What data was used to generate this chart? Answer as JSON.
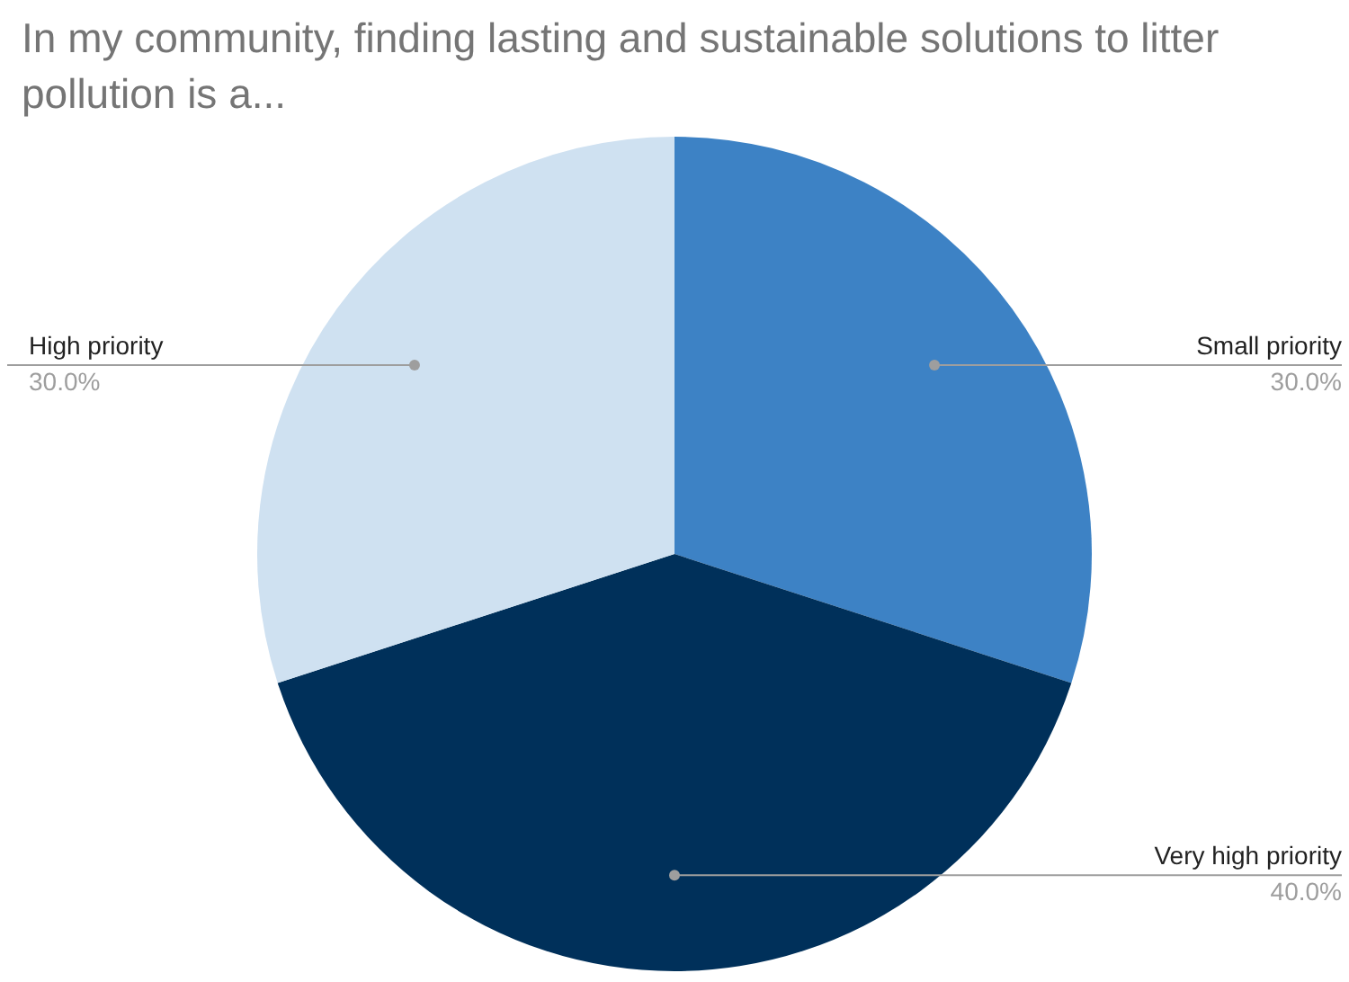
{
  "chart_data": {
    "type": "pie",
    "title": "In my community, finding lasting and sustainable solutions to litter pollution is a...",
    "categories": [
      "Small priority",
      "Very high priority",
      "High priority"
    ],
    "values": [
      30,
      40,
      30
    ],
    "colors": [
      "#3d82c5",
      "#00305a",
      "#cfe1f1"
    ],
    "value_labels": [
      "30.0%",
      "40.0%",
      "30.0%"
    ],
    "legend": false
  }
}
